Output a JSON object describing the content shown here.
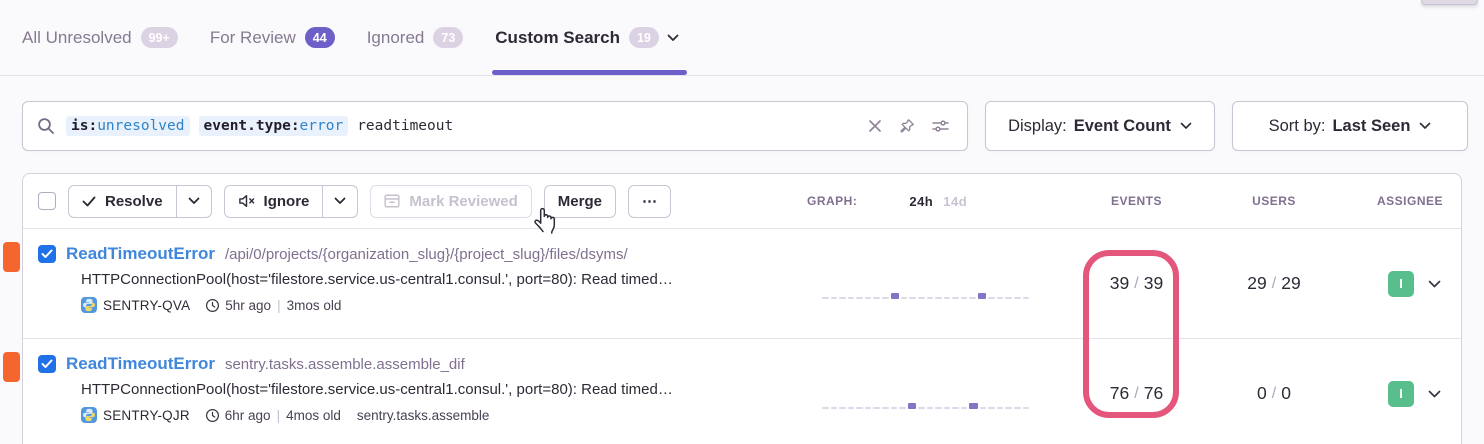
{
  "tabs": [
    {
      "label": "All Unresolved",
      "badge": "99+",
      "style": "light",
      "active": false
    },
    {
      "label": "For Review",
      "badge": "44",
      "style": "solid",
      "active": false
    },
    {
      "label": "Ignored",
      "badge": "73",
      "style": "light",
      "active": false
    },
    {
      "label": "Custom Search",
      "badge": "19",
      "style": "light",
      "active": true
    }
  ],
  "search": {
    "tokens": [
      {
        "key": "is:",
        "value": "unresolved"
      },
      {
        "key": "event.type:",
        "value": "error"
      }
    ],
    "free_text": "readtimeout"
  },
  "display_dropdown": {
    "label": "Display:",
    "value": "Event Count"
  },
  "sort_dropdown": {
    "label": "Sort by:",
    "value": "Last Seen"
  },
  "toolbar": {
    "resolve_label": "Resolve",
    "ignore_label": "Ignore",
    "mark_reviewed_label": "Mark Reviewed",
    "merge_label": "Merge",
    "more_label": "⋯"
  },
  "columns": {
    "graph_label": "GRAPH:",
    "range_24h": "24h",
    "range_14d": "14d",
    "events": "EVENTS",
    "users": "USERS",
    "assignee": "ASSIGNEE"
  },
  "labels": {
    "count_separator": "/",
    "age_separator": "|"
  },
  "issues": [
    {
      "title": "ReadTimeoutError",
      "culprit": "/api/0/projects/{organization_slug}/{project_slug}/files/dsyms/",
      "message": "HTTPConnectionPool(host='filestore.service.us-central1.consul.', port=80): Read timed…",
      "project": "SENTRY-QVA",
      "age": "5hr ago",
      "old": "3mos old",
      "extra": "",
      "events_count": "39",
      "events_total": "39",
      "users_count": "29",
      "users_total": "29",
      "assignee_initial": "I",
      "graph": [
        0,
        0,
        0,
        0,
        0,
        0,
        0,
        0,
        1,
        0,
        0,
        0,
        0,
        0,
        0,
        0,
        0,
        0,
        1,
        0,
        0,
        0,
        0,
        0
      ]
    },
    {
      "title": "ReadTimeoutError",
      "culprit": "sentry.tasks.assemble.assemble_dif",
      "message": "HTTPConnectionPool(host='filestore.service.us-central1.consul.', port=80): Read timed…",
      "project": "SENTRY-QJR",
      "age": "6hr ago",
      "old": "4mos old",
      "extra": "sentry.tasks.assemble",
      "events_count": "76",
      "events_total": "76",
      "users_count": "0",
      "users_total": "0",
      "assignee_initial": "I",
      "graph": [
        0,
        0,
        0,
        0,
        0,
        0,
        0,
        0,
        0,
        0,
        1,
        0,
        0,
        0,
        0,
        0,
        0,
        1,
        0,
        0,
        0,
        0,
        0,
        0
      ]
    }
  ],
  "annotation": {
    "purpose": "events-column-highlight",
    "color": "#E4567C"
  },
  "colors": {
    "accent_purple": "#6C5FC7",
    "link_blue": "#4087DC",
    "checkbox_blue": "#2070E8",
    "level_orange": "#F5652E",
    "assignee_green": "#57BE8C",
    "token_bg": "#E9F2FC",
    "token_value_blue": "#3183C8"
  }
}
